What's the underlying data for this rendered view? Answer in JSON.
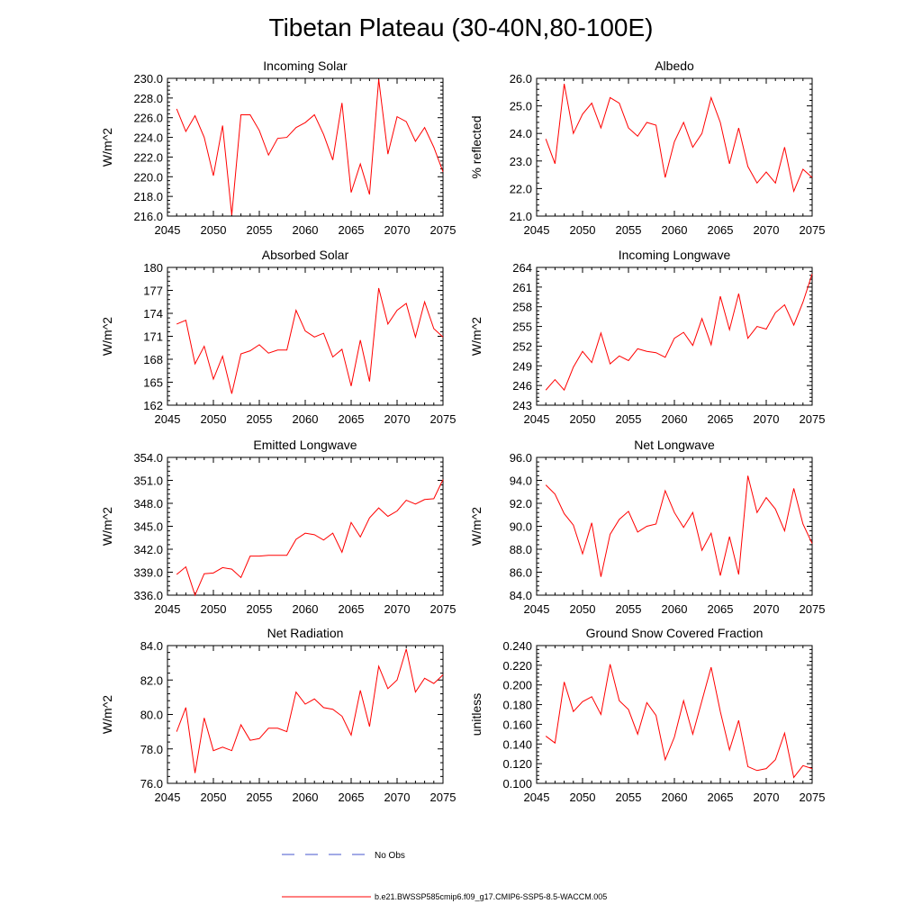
{
  "figure_title": "Tibetan Plateau (30-40N,80-100E)",
  "colors": {
    "series": "#ff0000",
    "obs": "#4455cc",
    "axis": "#000000"
  },
  "legend": {
    "obs_label": "No Obs",
    "model_label": "b.e21.BWSSP585cmip6.f09_g17.CMIP6-SSP5-8.5-WACCM.005"
  },
  "chart_data": [
    {
      "type": "line",
      "title": "Incoming Solar",
      "ylabel": "W/m^2",
      "xlim": [
        2045,
        2075
      ],
      "ylim": [
        216.0,
        230.0
      ],
      "x_ticks": [
        "2045",
        "2050",
        "2055",
        "2060",
        "2065",
        "2070",
        "2075"
      ],
      "y_ticks": [
        "216.0",
        "218.0",
        "220.0",
        "222.0",
        "224.0",
        "226.0",
        "228.0",
        "230.0"
      ],
      "x": [
        2046,
        2047,
        2048,
        2049,
        2050,
        2051,
        2052,
        2053,
        2054,
        2055,
        2056,
        2057,
        2058,
        2059,
        2060,
        2061,
        2062,
        2063,
        2064,
        2065,
        2066,
        2067,
        2068,
        2069,
        2070,
        2071,
        2072,
        2073,
        2074,
        2075
      ],
      "series": [
        {
          "name": "b.e21.BWSSP585cmip6.f09_g17.CMIP6-SSP5-8.5-WACCM.005",
          "values": [
            226.9,
            224.6,
            226.2,
            224.0,
            220.1,
            225.2,
            216.1,
            226.3,
            226.3,
            224.7,
            222.2,
            223.9,
            224.0,
            225.0,
            225.5,
            226.3,
            224.3,
            221.7,
            227.5,
            218.4,
            221.3,
            218.2,
            229.9,
            222.3,
            226.1,
            225.6,
            223.6,
            225.0,
            223.0,
            220.5
          ]
        }
      ]
    },
    {
      "type": "line",
      "title": "Albedo",
      "ylabel": "% reflected",
      "xlim": [
        2045,
        2075
      ],
      "ylim": [
        21.0,
        26.0
      ],
      "x_ticks": [
        "2045",
        "2050",
        "2055",
        "2060",
        "2065",
        "2070",
        "2075"
      ],
      "y_ticks": [
        "21.0",
        "22.0",
        "23.0",
        "24.0",
        "25.0",
        "26.0"
      ],
      "x": [
        2046,
        2047,
        2048,
        2049,
        2050,
        2051,
        2052,
        2053,
        2054,
        2055,
        2056,
        2057,
        2058,
        2059,
        2060,
        2061,
        2062,
        2063,
        2064,
        2065,
        2066,
        2067,
        2068,
        2069,
        2070,
        2071,
        2072,
        2073,
        2074,
        2075
      ],
      "series": [
        {
          "name": "b.e21.BWSSP585cmip6.f09_g17.CMIP6-SSP5-8.5-WACCM.005",
          "values": [
            23.8,
            22.9,
            25.8,
            24.0,
            24.7,
            25.1,
            24.2,
            25.3,
            25.1,
            24.2,
            23.9,
            24.4,
            24.3,
            22.4,
            23.7,
            24.4,
            23.5,
            24.0,
            25.3,
            24.4,
            22.9,
            24.2,
            22.8,
            22.2,
            22.6,
            22.2,
            23.5,
            21.9,
            22.7,
            22.4
          ]
        }
      ]
    },
    {
      "type": "line",
      "title": "Absorbed Solar",
      "ylabel": "W/m^2",
      "xlim": [
        2045,
        2075
      ],
      "ylim": [
        162,
        180
      ],
      "x_ticks": [
        "2045",
        "2050",
        "2055",
        "2060",
        "2065",
        "2070",
        "2075"
      ],
      "y_ticks": [
        "162",
        "165",
        "168",
        "171",
        "174",
        "177",
        "180"
      ],
      "x": [
        2046,
        2047,
        2048,
        2049,
        2050,
        2051,
        2052,
        2053,
        2054,
        2055,
        2056,
        2057,
        2058,
        2059,
        2060,
        2061,
        2062,
        2063,
        2064,
        2065,
        2066,
        2067,
        2068,
        2069,
        2070,
        2071,
        2072,
        2073,
        2074,
        2075
      ],
      "series": [
        {
          "name": "b.e21.BWSSP585cmip6.f09_g17.CMIP6-SSP5-8.5-WACCM.005",
          "values": [
            172.6,
            173.1,
            167.4,
            169.7,
            165.4,
            168.4,
            163.5,
            168.7,
            169.1,
            169.9,
            168.8,
            169.2,
            169.2,
            174.4,
            171.7,
            170.9,
            171.4,
            168.3,
            169.3,
            164.5,
            170.5,
            165.1,
            177.3,
            172.6,
            174.4,
            175.3,
            170.9,
            175.5,
            172.0,
            170.9
          ]
        }
      ]
    },
    {
      "type": "line",
      "title": "Incoming Longwave",
      "ylabel": "W/m^2",
      "xlim": [
        2045,
        2075
      ],
      "ylim": [
        243,
        264
      ],
      "x_ticks": [
        "2045",
        "2050",
        "2055",
        "2060",
        "2065",
        "2070",
        "2075"
      ],
      "y_ticks": [
        "243",
        "246",
        "249",
        "252",
        "255",
        "258",
        "261",
        "264"
      ],
      "x": [
        2046,
        2047,
        2048,
        2049,
        2050,
        2051,
        2052,
        2053,
        2054,
        2055,
        2056,
        2057,
        2058,
        2059,
        2060,
        2061,
        2062,
        2063,
        2064,
        2065,
        2066,
        2067,
        2068,
        2069,
        2070,
        2071,
        2072,
        2073,
        2074,
        2075
      ],
      "series": [
        {
          "name": "b.e21.BWSSP585cmip6.f09_g17.CMIP6-SSP5-8.5-WACCM.005",
          "values": [
            245.3,
            246.9,
            245.3,
            248.8,
            251.2,
            249.5,
            254.0,
            249.3,
            250.5,
            249.8,
            251.6,
            251.2,
            251.0,
            250.3,
            253.2,
            254.1,
            252.1,
            256.2,
            252.2,
            259.6,
            254.5,
            260.0,
            253.2,
            255.0,
            254.6,
            257.1,
            258.3,
            255.2,
            258.7,
            263.0
          ]
        }
      ]
    },
    {
      "type": "line",
      "title": "Emitted Longwave",
      "ylabel": "W/m^2",
      "xlim": [
        2045,
        2075
      ],
      "ylim": [
        336.0,
        354.0
      ],
      "x_ticks": [
        "2045",
        "2050",
        "2055",
        "2060",
        "2065",
        "2070",
        "2075"
      ],
      "y_ticks": [
        "336.0",
        "339.0",
        "342.0",
        "345.0",
        "348.0",
        "351.0",
        "354.0"
      ],
      "x": [
        2046,
        2047,
        2048,
        2049,
        2050,
        2051,
        2052,
        2053,
        2054,
        2055,
        2056,
        2057,
        2058,
        2059,
        2060,
        2061,
        2062,
        2063,
        2064,
        2065,
        2066,
        2067,
        2068,
        2069,
        2070,
        2071,
        2072,
        2073,
        2074,
        2075
      ],
      "series": [
        {
          "name": "b.e21.BWSSP585cmip6.f09_g17.CMIP6-SSP5-8.5-WACCM.005",
          "values": [
            338.7,
            339.7,
            336.0,
            338.8,
            338.9,
            339.6,
            339.4,
            338.3,
            341.1,
            341.1,
            341.2,
            341.2,
            341.2,
            343.3,
            344.1,
            343.9,
            343.2,
            344.1,
            341.6,
            345.5,
            343.6,
            346.1,
            347.4,
            346.3,
            347.0,
            348.4,
            347.9,
            348.5,
            348.6,
            351.1
          ]
        }
      ]
    },
    {
      "type": "line",
      "title": "Net Longwave",
      "ylabel": "W/m^2",
      "xlim": [
        2045,
        2075
      ],
      "ylim": [
        84.0,
        96.0
      ],
      "x_ticks": [
        "2045",
        "2050",
        "2055",
        "2060",
        "2065",
        "2070",
        "2075"
      ],
      "y_ticks": [
        "84.0",
        "86.0",
        "88.0",
        "90.0",
        "92.0",
        "94.0",
        "96.0"
      ],
      "x": [
        2046,
        2047,
        2048,
        2049,
        2050,
        2051,
        2052,
        2053,
        2054,
        2055,
        2056,
        2057,
        2058,
        2059,
        2060,
        2061,
        2062,
        2063,
        2064,
        2065,
        2066,
        2067,
        2068,
        2069,
        2070,
        2071,
        2072,
        2073,
        2074,
        2075
      ],
      "series": [
        {
          "name": "b.e21.BWSSP585cmip6.f09_g17.CMIP6-SSP5-8.5-WACCM.005",
          "values": [
            93.6,
            92.8,
            91.1,
            90.1,
            87.6,
            90.3,
            85.6,
            89.3,
            90.6,
            91.3,
            89.5,
            90.0,
            90.2,
            93.1,
            91.2,
            89.9,
            91.2,
            87.9,
            89.4,
            85.7,
            89.1,
            85.8,
            94.4,
            91.2,
            92.5,
            91.5,
            89.6,
            93.3,
            90.2,
            88.5
          ]
        }
      ]
    },
    {
      "type": "line",
      "title": "Net Radiation",
      "ylabel": "W/m^2",
      "xlim": [
        2045,
        2075
      ],
      "ylim": [
        76.0,
        84.0
      ],
      "x_ticks": [
        "2045",
        "2050",
        "2055",
        "2060",
        "2065",
        "2070",
        "2075"
      ],
      "y_ticks": [
        "76.0",
        "78.0",
        "80.0",
        "82.0",
        "84.0"
      ],
      "x": [
        2046,
        2047,
        2048,
        2049,
        2050,
        2051,
        2052,
        2053,
        2054,
        2055,
        2056,
        2057,
        2058,
        2059,
        2060,
        2061,
        2062,
        2063,
        2064,
        2065,
        2066,
        2067,
        2068,
        2069,
        2070,
        2071,
        2072,
        2073,
        2074,
        2075
      ],
      "series": [
        {
          "name": "b.e21.BWSSP585cmip6.f09_g17.CMIP6-SSP5-8.5-WACCM.005",
          "values": [
            79.0,
            80.4,
            76.6,
            79.8,
            77.9,
            78.1,
            77.9,
            79.4,
            78.5,
            78.6,
            79.2,
            79.2,
            79.0,
            81.3,
            80.6,
            80.9,
            80.4,
            80.3,
            79.9,
            78.8,
            81.4,
            79.3,
            82.8,
            81.5,
            82.0,
            83.8,
            81.3,
            82.1,
            81.8,
            82.3
          ]
        }
      ]
    },
    {
      "type": "line",
      "title": "Ground Snow Covered Fraction",
      "ylabel": "unitless",
      "xlim": [
        2045,
        2075
      ],
      "ylim": [
        0.1,
        0.24
      ],
      "x_ticks": [
        "2045",
        "2050",
        "2055",
        "2060",
        "2065",
        "2070",
        "2075"
      ],
      "y_ticks": [
        "0.100",
        "0.120",
        "0.140",
        "0.160",
        "0.180",
        "0.200",
        "0.220",
        "0.240"
      ],
      "x": [
        2046,
        2047,
        2048,
        2049,
        2050,
        2051,
        2052,
        2053,
        2054,
        2055,
        2056,
        2057,
        2058,
        2059,
        2060,
        2061,
        2062,
        2063,
        2064,
        2065,
        2066,
        2067,
        2068,
        2069,
        2070,
        2071,
        2072,
        2073,
        2074,
        2075
      ],
      "series": [
        {
          "name": "b.e21.BWSSP585cmip6.f09_g17.CMIP6-SSP5-8.5-WACCM.005",
          "values": [
            0.148,
            0.141,
            0.203,
            0.173,
            0.183,
            0.188,
            0.17,
            0.221,
            0.184,
            0.175,
            0.15,
            0.182,
            0.169,
            0.124,
            0.147,
            0.184,
            0.15,
            0.184,
            0.218,
            0.173,
            0.134,
            0.164,
            0.117,
            0.113,
            0.115,
            0.124,
            0.151,
            0.106,
            0.118,
            0.115
          ]
        }
      ]
    }
  ]
}
